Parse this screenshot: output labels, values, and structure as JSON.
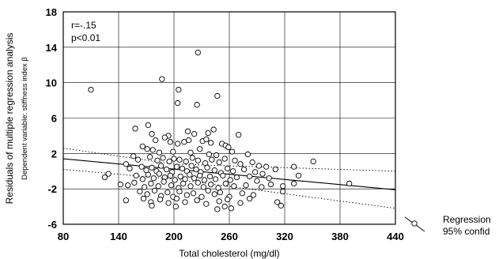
{
  "chart_data": {
    "type": "scatter",
    "xlabel": "Total cholesterol (mg/dl)",
    "ylabel": "Residuals of multiple regression analysis",
    "ylabel_sub": "Dependent variable: stiffness index β",
    "xlim": [
      80,
      440
    ],
    "ylim": [
      -6,
      18
    ],
    "xticks": [
      80,
      140,
      200,
      260,
      320,
      380,
      440
    ],
    "yticks": [
      -6,
      -2,
      2,
      6,
      10,
      14,
      18
    ],
    "grid": true,
    "annotations": [
      "r=-.15",
      "p<0.01"
    ],
    "legend": {
      "position": "right",
      "entries": [
        "Regression",
        "95% confid"
      ]
    },
    "regression_line": {
      "x": [
        80,
        440
      ],
      "y": [
        1.4,
        -2.1
      ]
    },
    "confidence_band": {
      "upper": {
        "x": [
          80,
          200,
          440
        ],
        "y": [
          2.6,
          0.8,
          0.0
        ]
      },
      "lower": {
        "x": [
          80,
          200,
          440
        ],
        "y": [
          0.2,
          -0.9,
          -4.2
        ]
      }
    },
    "points": [
      [
        110,
        9.2
      ],
      [
        187,
        10.4
      ],
      [
        205,
        9.2
      ],
      [
        204,
        7.7
      ],
      [
        225,
        7.5
      ],
      [
        226,
        13.4
      ],
      [
        247,
        8.5
      ],
      [
        158,
        4.8
      ],
      [
        172,
        5.2
      ],
      [
        176,
        4.2
      ],
      [
        194,
        4.0
      ],
      [
        215,
        4.5
      ],
      [
        222,
        4.2
      ],
      [
        237,
        4.3
      ],
      [
        243,
        4.7
      ],
      [
        270,
        4.1
      ],
      [
        180,
        3.5
      ],
      [
        190,
        3.8
      ],
      [
        196,
        3.3
      ],
      [
        204,
        3.1
      ],
      [
        211,
        3.3
      ],
      [
        216,
        3.5
      ],
      [
        231,
        3.4
      ],
      [
        235,
        3.6
      ],
      [
        240,
        3.2
      ],
      [
        252,
        3.1
      ],
      [
        256,
        2.9
      ],
      [
        166,
        2.8
      ],
      [
        171,
        2.5
      ],
      [
        177,
        2.4
      ],
      [
        184,
        2.1
      ],
      [
        199,
        2.2
      ],
      [
        218,
        2.1
      ],
      [
        228,
        2.5
      ],
      [
        238,
        1.9
      ],
      [
        246,
        1.8
      ],
      [
        259,
        2.7
      ],
      [
        263,
        2.2
      ],
      [
        280,
        1.9
      ],
      [
        156,
        1.7
      ],
      [
        161,
        1.3
      ],
      [
        174,
        1.6
      ],
      [
        182,
        1.2
      ],
      [
        188,
        1.5
      ],
      [
        195,
        1.1
      ],
      [
        200,
        1.4
      ],
      [
        206,
        1.3
      ],
      [
        213,
        1.1
      ],
      [
        220,
        1.5
      ],
      [
        226,
        1.2
      ],
      [
        234,
        0.9
      ],
      [
        241,
        1.3
      ],
      [
        249,
        1.0
      ],
      [
        255,
        1.4
      ],
      [
        266,
        1.2
      ],
      [
        272,
        0.8
      ],
      [
        285,
        1.0
      ],
      [
        292,
        0.6
      ],
      [
        300,
        0.5
      ],
      [
        330,
        0.5
      ],
      [
        351,
        1.1
      ],
      [
        148,
        0.8
      ],
      [
        152,
        0.3
      ],
      [
        165,
        0.5
      ],
      [
        170,
        0.1
      ],
      [
        176,
        0.4
      ],
      [
        181,
        0.0
      ],
      [
        186,
        0.6
      ],
      [
        192,
        0.2
      ],
      [
        198,
        -0.1
      ],
      [
        203,
        0.5
      ],
      [
        209,
        0.3
      ],
      [
        214,
        0.0
      ],
      [
        219,
        0.6
      ],
      [
        224,
        0.2
      ],
      [
        229,
        -0.1
      ],
      [
        236,
        0.4
      ],
      [
        244,
        0.1
      ],
      [
        251,
        -0.2
      ],
      [
        258,
        0.3
      ],
      [
        264,
        0.0
      ],
      [
        276,
        0.2
      ],
      [
        288,
        -0.1
      ],
      [
        296,
        -0.3
      ],
      [
        310,
        0.2
      ],
      [
        335,
        -0.5
      ],
      [
        125,
        -0.7
      ],
      [
        129,
        -0.3
      ],
      [
        159,
        -0.5
      ],
      [
        166,
        -0.9
      ],
      [
        172,
        -0.4
      ],
      [
        178,
        -0.8
      ],
      [
        184,
        -0.3
      ],
      [
        190,
        -0.7
      ],
      [
        196,
        -0.5
      ],
      [
        201,
        -1.0
      ],
      [
        207,
        -0.6
      ],
      [
        212,
        -0.9
      ],
      [
        217,
        -0.4
      ],
      [
        222,
        -0.8
      ],
      [
        228,
        -0.5
      ],
      [
        233,
        -1.0
      ],
      [
        239,
        -0.6
      ],
      [
        245,
        -0.9
      ],
      [
        253,
        -0.5
      ],
      [
        261,
        -1.0
      ],
      [
        268,
        -0.7
      ],
      [
        282,
        -0.6
      ],
      [
        290,
        -1.1
      ],
      [
        303,
        -0.8
      ],
      [
        142,
        -1.5
      ],
      [
        150,
        -1.6
      ],
      [
        157,
        -1.3
      ],
      [
        168,
        -1.8
      ],
      [
        175,
        -1.4
      ],
      [
        183,
        -1.7
      ],
      [
        189,
        -1.2
      ],
      [
        197,
        -1.6
      ],
      [
        205,
        -1.9
      ],
      [
        210,
        -1.4
      ],
      [
        218,
        -1.7
      ],
      [
        226,
        -1.3
      ],
      [
        232,
        -1.8
      ],
      [
        240,
        -1.5
      ],
      [
        248,
        -1.9
      ],
      [
        256,
        -1.4
      ],
      [
        265,
        -1.7
      ],
      [
        278,
        -1.6
      ],
      [
        295,
        -1.8
      ],
      [
        305,
        -1.5
      ],
      [
        318,
        -1.7
      ],
      [
        330,
        -1.4
      ],
      [
        390,
        -1.4
      ],
      [
        163,
        -2.3
      ],
      [
        171,
        -2.6
      ],
      [
        179,
        -2.2
      ],
      [
        186,
        -2.8
      ],
      [
        193,
        -2.4
      ],
      [
        199,
        -2.9
      ],
      [
        206,
        -2.3
      ],
      [
        214,
        -2.7
      ],
      [
        221,
        -2.5
      ],
      [
        230,
        -2.9
      ],
      [
        237,
        -2.2
      ],
      [
        244,
        -2.6
      ],
      [
        250,
        -2.4
      ],
      [
        260,
        -2.9
      ],
      [
        274,
        -2.5
      ],
      [
        286,
        -2.7
      ],
      [
        318,
        -2.3
      ],
      [
        148,
        -3.3
      ],
      [
        167,
        -3.1
      ],
      [
        175,
        -3.5
      ],
      [
        185,
        -3.2
      ],
      [
        194,
        -3.6
      ],
      [
        203,
        -3.1
      ],
      [
        212,
        -3.5
      ],
      [
        225,
        -3.3
      ],
      [
        235,
        -3.7
      ],
      [
        249,
        -3.4
      ],
      [
        258,
        -3.2
      ],
      [
        272,
        -3.6
      ],
      [
        282,
        -3.1
      ],
      [
        312,
        -3.5
      ],
      [
        176,
        -3.9
      ],
      [
        202,
        -4.0
      ],
      [
        247,
        -4.3
      ],
      [
        255,
        -4.0
      ],
      [
        262,
        -4.2
      ],
      [
        316,
        -3.9
      ]
    ]
  }
}
